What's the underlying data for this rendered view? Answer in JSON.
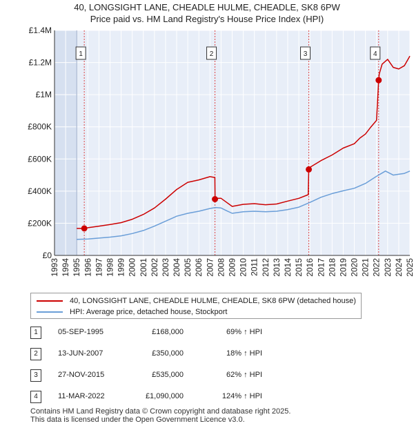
{
  "chart_data": {
    "type": "line",
    "title": "40, LONGSIGHT LANE, CHEADLE HULME, CHEADLE, SK8 6PW",
    "subtitle": "Price paid vs. HM Land Registry's House Price Index (HPI)",
    "xlabel": "",
    "ylabel": "",
    "xlim": [
      1993,
      2025
    ],
    "ylim": [
      0,
      1400000
    ],
    "y_ticks": [
      {
        "value": 0,
        "label": "£0"
      },
      {
        "value": 200000,
        "label": "£200K"
      },
      {
        "value": 400000,
        "label": "£400K"
      },
      {
        "value": 600000,
        "label": "£600K"
      },
      {
        "value": 800000,
        "label": "£800K"
      },
      {
        "value": 1000000,
        "label": "£1M"
      },
      {
        "value": 1200000,
        "label": "£1.2M"
      },
      {
        "value": 1400000,
        "label": "£1.4M"
      }
    ],
    "x_ticks": [
      "1993",
      "1994",
      "1995",
      "1996",
      "1997",
      "1998",
      "1999",
      "2000",
      "2001",
      "2002",
      "2003",
      "2004",
      "2005",
      "2006",
      "2007",
      "2008",
      "2009",
      "2010",
      "2011",
      "2012",
      "2013",
      "2014",
      "2015",
      "2016",
      "2017",
      "2018",
      "2019",
      "2020",
      "2021",
      "2022",
      "2023",
      "2024",
      "2025"
    ],
    "data_start_year": 1995,
    "series": [
      {
        "name": "40, LONGSIGHT LANE, CHEADLE HULME, CHEADLE, SK8 6PW (detached house)",
        "color": "#cc0000",
        "x": [
          1995.0,
          1995.68,
          1996.0,
          1997.0,
          1998.0,
          1999.0,
          2000.0,
          2001.0,
          2002.0,
          2003.0,
          2004.0,
          2005.0,
          2006.0,
          2007.0,
          2007.44,
          2007.46,
          2008.0,
          2008.5,
          2009.0,
          2010.0,
          2011.0,
          2012.0,
          2013.0,
          2014.0,
          2015.0,
          2015.85,
          2015.9,
          2016.0,
          2017.0,
          2018.0,
          2019.0,
          2020.0,
          2020.5,
          2021.0,
          2021.5,
          2022.0,
          2022.19,
          2022.25,
          2022.5,
          2023.0,
          2023.5,
          2024.0,
          2024.5,
          2025.0
        ],
        "y": [
          168000,
          168000,
          172000,
          182000,
          192000,
          204000,
          225000,
          255000,
          295000,
          350000,
          410000,
          455000,
          470000,
          490000,
          485000,
          355000,
          355000,
          330000,
          305000,
          318000,
          322000,
          315000,
          320000,
          338000,
          355000,
          378000,
          535000,
          548000,
          590000,
          625000,
          668000,
          695000,
          730000,
          755000,
          800000,
          840000,
          1090000,
          1130000,
          1190000,
          1220000,
          1170000,
          1160000,
          1180000,
          1240000
        ]
      },
      {
        "name": "HPI: Average price, detached house, Stockport",
        "color": "#6a9ed8",
        "x": [
          1995.0,
          1996.0,
          1997.0,
          1998.0,
          1999.0,
          2000.0,
          2001.0,
          2002.0,
          2003.0,
          2004.0,
          2005.0,
          2006.0,
          2007.0,
          2007.5,
          2008.0,
          2008.5,
          2009.0,
          2010.0,
          2011.0,
          2012.0,
          2013.0,
          2014.0,
          2015.0,
          2016.0,
          2017.0,
          2018.0,
          2019.0,
          2020.0,
          2021.0,
          2022.0,
          2022.8,
          2023.5,
          2024.0,
          2024.5,
          2025.0
        ],
        "y": [
          100000,
          102000,
          108000,
          114000,
          122000,
          136000,
          155000,
          182000,
          213000,
          244000,
          262000,
          275000,
          292000,
          298000,
          295000,
          278000,
          262000,
          272000,
          275000,
          272000,
          275000,
          285000,
          300000,
          330000,
          362000,
          385000,
          402000,
          418000,
          448000,
          492000,
          525000,
          500000,
          505000,
          510000,
          525000
        ]
      }
    ],
    "sale_markers": [
      {
        "label": "1",
        "x": 1995.68,
        "y": 168000
      },
      {
        "label": "2",
        "x": 2007.45,
        "y": 350000
      },
      {
        "label": "3",
        "x": 2015.9,
        "y": 535000
      },
      {
        "label": "4",
        "x": 2022.19,
        "y": 1090000
      }
    ]
  },
  "legend": {
    "items": [
      {
        "label": "40, LONGSIGHT LANE, CHEADLE HULME, CHEADLE, SK8 6PW (detached house)",
        "color": "#cc0000"
      },
      {
        "label": "HPI: Average price, detached house, Stockport",
        "color": "#6a9ed8"
      }
    ]
  },
  "sales": [
    {
      "num": "1",
      "date": "05-SEP-1995",
      "price": "£168,000",
      "hpi": "69% ↑ HPI"
    },
    {
      "num": "2",
      "date": "13-JUN-2007",
      "price": "£350,000",
      "hpi": "18% ↑ HPI"
    },
    {
      "num": "3",
      "date": "27-NOV-2015",
      "price": "£535,000",
      "hpi": "62% ↑ HPI"
    },
    {
      "num": "4",
      "date": "11-MAR-2022",
      "price": "£1,090,000",
      "hpi": "124% ↑ HPI"
    }
  ],
  "footer": {
    "line1": "Contains HM Land Registry data © Crown copyright and database right 2025.",
    "line2": "This data is licensed under the Open Government Licence v3.0."
  },
  "colors": {
    "plot_bg": "#e8eef8",
    "shaded_bg": "#d6e0f0",
    "grid": "#ffffff",
    "vline": "#dd4444",
    "axis": "#333333"
  }
}
